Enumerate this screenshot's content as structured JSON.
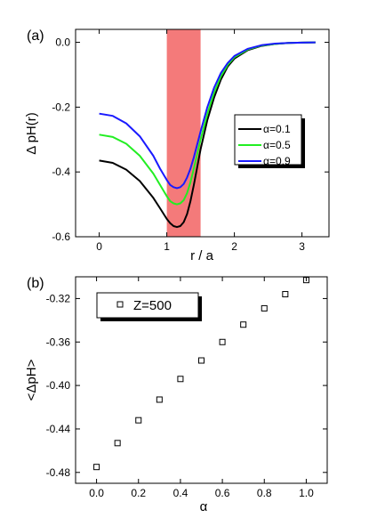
{
  "chart_data": [
    {
      "panel_label": "(a)",
      "type": "line",
      "xlabel": "r / a",
      "ylabel": "Δ pH(r)",
      "xlim": [
        -0.35,
        3.4
      ],
      "ylim": [
        -0.6,
        0.04
      ],
      "x_ticks": [
        0,
        1,
        2,
        3
      ],
      "x_tick_labels": [
        "0",
        "1",
        "2",
        "3"
      ],
      "y_ticks": [
        0.0,
        -0.2,
        -0.4,
        -0.6
      ],
      "y_tick_labels": [
        "0.0",
        "-0.2",
        "-0.4",
        "-0.6"
      ],
      "shaded_region": {
        "x_range": [
          1.0,
          1.5
        ],
        "color": "#f47a7a"
      },
      "legend_position": "right",
      "series": [
        {
          "name": "α=0.1",
          "color": "#000000",
          "x": [
            0,
            0.2,
            0.4,
            0.6,
            0.8,
            0.9,
            1.0,
            1.05,
            1.1,
            1.15,
            1.2,
            1.25,
            1.3,
            1.35,
            1.4,
            1.45,
            1.5,
            1.6,
            1.7,
            1.8,
            1.9,
            2.0,
            2.2,
            2.4,
            2.6,
            2.8,
            3.0,
            3.2
          ],
          "y": [
            -0.365,
            -0.372,
            -0.393,
            -0.428,
            -0.48,
            -0.512,
            -0.545,
            -0.558,
            -0.567,
            -0.57,
            -0.567,
            -0.555,
            -0.53,
            -0.49,
            -0.44,
            -0.385,
            -0.33,
            -0.24,
            -0.17,
            -0.115,
            -0.075,
            -0.05,
            -0.024,
            -0.011,
            -0.005,
            -0.002,
            -0.001,
            0.0
          ]
        },
        {
          "name": "α=0.5",
          "color": "#22ee22",
          "x": [
            0,
            0.2,
            0.4,
            0.6,
            0.8,
            0.9,
            1.0,
            1.05,
            1.1,
            1.15,
            1.2,
            1.25,
            1.3,
            1.35,
            1.4,
            1.45,
            1.5,
            1.6,
            1.7,
            1.8,
            1.9,
            2.0,
            2.2,
            2.4,
            2.6,
            2.8,
            3.0,
            3.2
          ],
          "y": [
            -0.285,
            -0.292,
            -0.313,
            -0.35,
            -0.405,
            -0.44,
            -0.475,
            -0.49,
            -0.497,
            -0.5,
            -0.497,
            -0.487,
            -0.465,
            -0.432,
            -0.39,
            -0.345,
            -0.3,
            -0.22,
            -0.155,
            -0.105,
            -0.07,
            -0.046,
            -0.022,
            -0.01,
            -0.005,
            -0.002,
            -0.001,
            0.0
          ]
        },
        {
          "name": "α=0.9",
          "color": "#1a1aff",
          "x": [
            0,
            0.2,
            0.4,
            0.6,
            0.8,
            0.9,
            1.0,
            1.05,
            1.1,
            1.15,
            1.2,
            1.25,
            1.3,
            1.35,
            1.4,
            1.45,
            1.5,
            1.6,
            1.7,
            1.8,
            1.9,
            2.0,
            2.2,
            2.4,
            2.6,
            2.8,
            3.0,
            3.2
          ],
          "y": [
            -0.22,
            -0.227,
            -0.25,
            -0.29,
            -0.35,
            -0.39,
            -0.425,
            -0.44,
            -0.447,
            -0.45,
            -0.447,
            -0.437,
            -0.417,
            -0.39,
            -0.355,
            -0.315,
            -0.275,
            -0.2,
            -0.14,
            -0.095,
            -0.064,
            -0.042,
            -0.02,
            -0.009,
            -0.004,
            -0.002,
            -0.001,
            0.0
          ]
        }
      ]
    },
    {
      "panel_label": "(b)",
      "type": "scatter",
      "xlabel": "α",
      "ylabel": "<ΔpH>",
      "xlim": [
        -0.1,
        1.1
      ],
      "ylim": [
        -0.49,
        -0.3
      ],
      "x_ticks": [
        0.0,
        0.2,
        0.4,
        0.6,
        0.8,
        1.0
      ],
      "x_tick_labels": [
        "0.0",
        "0.2",
        "0.4",
        "0.6",
        "0.8",
        "1.0"
      ],
      "y_ticks": [
        -0.32,
        -0.36,
        -0.4,
        -0.44,
        -0.48
      ],
      "y_tick_labels": [
        "-0.32",
        "-0.36",
        "-0.40",
        "-0.44",
        "-0.48"
      ],
      "legend_position": "top-left",
      "marker": "open-square",
      "series": [
        {
          "name": "Z=500",
          "color": "#000000",
          "x": [
            0.0,
            0.1,
            0.2,
            0.3,
            0.4,
            0.5,
            0.6,
            0.7,
            0.8,
            0.9,
            1.0
          ],
          "y": [
            -0.475,
            -0.453,
            -0.432,
            -0.413,
            -0.394,
            -0.377,
            -0.36,
            -0.344,
            -0.329,
            -0.316,
            -0.303
          ]
        }
      ]
    }
  ]
}
